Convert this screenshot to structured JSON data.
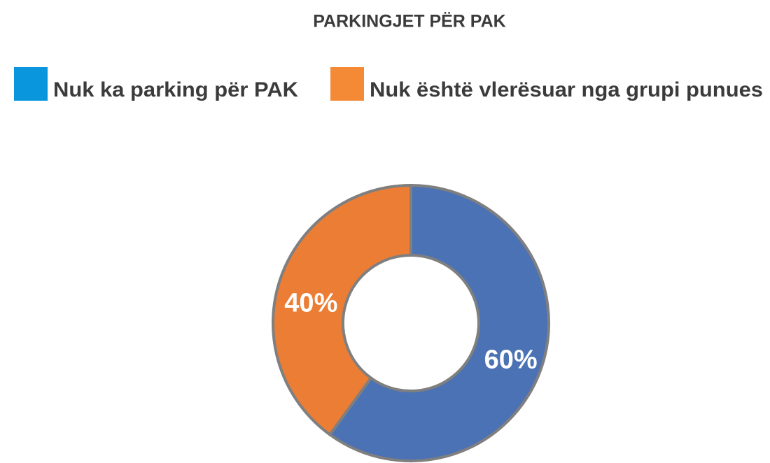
{
  "chart_data": {
    "type": "pie",
    "title": "PARKINGJET PËR PAK",
    "donut": true,
    "categories": [
      "Nuk ka parking për PAK",
      "Nuk është vlerësuar nga grupi punues"
    ],
    "values": [
      60,
      40
    ],
    "value_labels": [
      "60%",
      "40%"
    ],
    "colors": [
      "#4a72b5",
      "#ec7d35"
    ],
    "legend_colors": [
      "#0a96dc",
      "#f48a36"
    ]
  }
}
